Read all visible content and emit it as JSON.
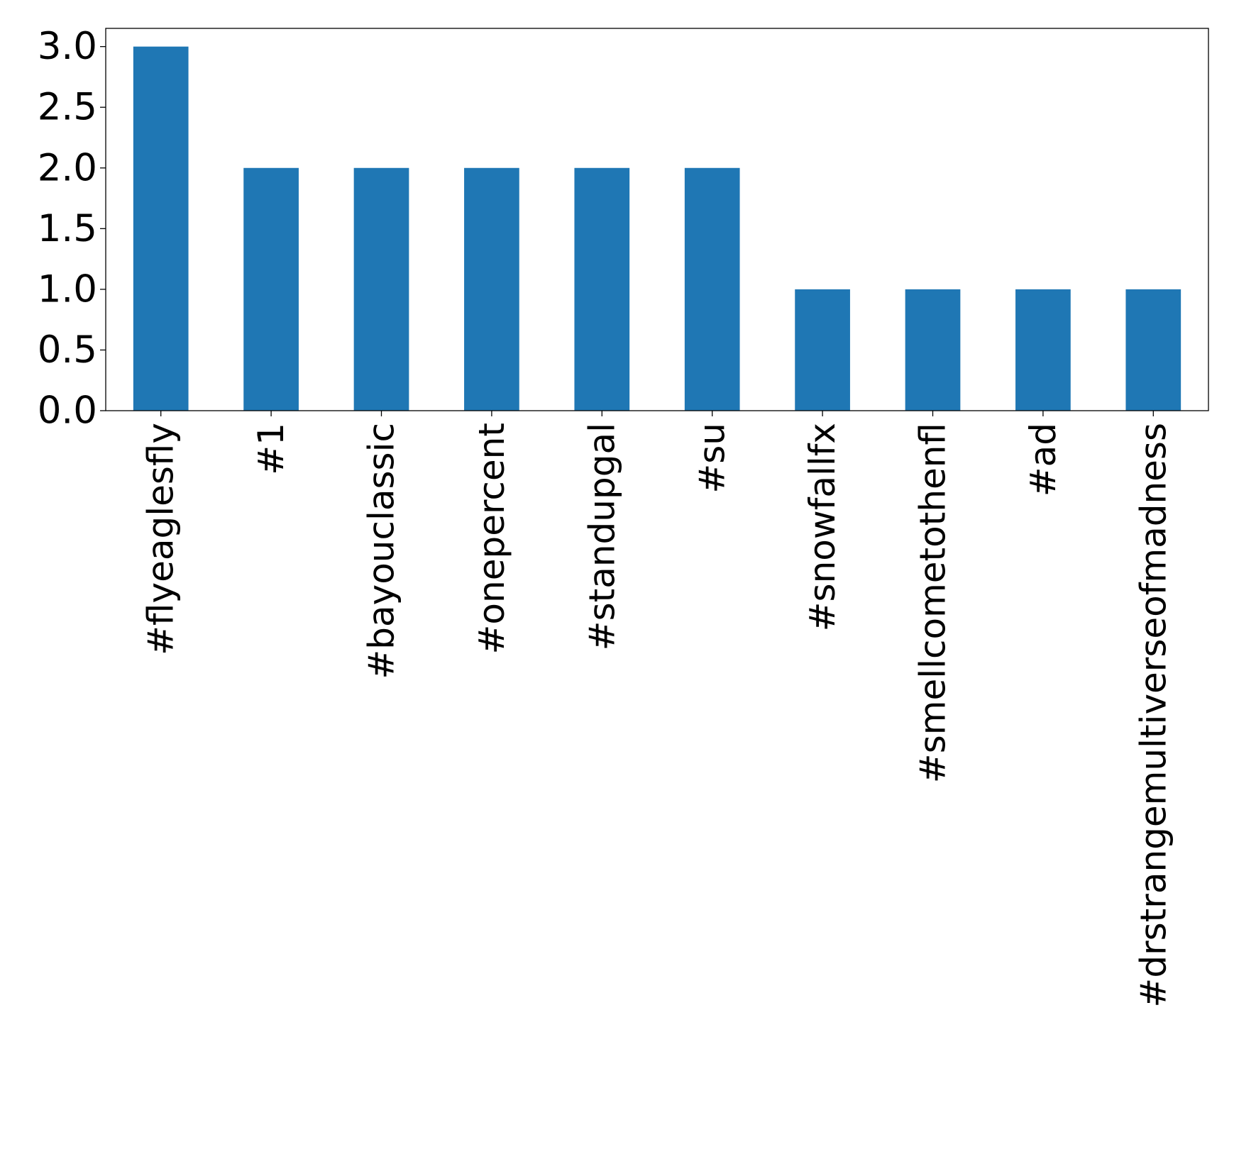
{
  "chart_data": {
    "type": "bar",
    "title": "",
    "xlabel": "",
    "ylabel": "",
    "categories": [
      "#flyeaglesfly",
      "#1",
      "#bayouclassic",
      "#onepercent",
      "#standupgal",
      "#su",
      "#snowfallfx",
      "#smellcometothenfl",
      "#ad",
      "#drstrangemultiverseofmadness"
    ],
    "values": [
      3,
      2,
      2,
      2,
      2,
      2,
      1,
      1,
      1,
      1
    ],
    "ylim": [
      0,
      3.15
    ],
    "yticks": [
      "0.0",
      "0.5",
      "1.0",
      "1.5",
      "2.0",
      "2.5",
      "3.0"
    ],
    "grid": false,
    "legend": "none",
    "x_tick_rotation": "vertical",
    "colors": {
      "bar": "#1f77b4",
      "axis": "#000000",
      "text": "#000000"
    }
  }
}
